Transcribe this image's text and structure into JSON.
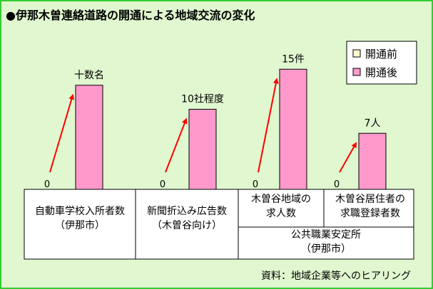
{
  "chart_data": {
    "type": "bar",
    "title": "●伊那木曽連絡道路の開通による地域交流の変化",
    "legend": {
      "placement": "top-right",
      "items": [
        {
          "label": "開通前",
          "color": "#ffffcc"
        },
        {
          "label": "開通後",
          "color": "#ff99cc"
        }
      ]
    },
    "categories": [
      {
        "lines": [
          "自動車学校入所者数",
          "（伊那市）"
        ]
      },
      {
        "lines": [
          "新聞折込み広告数",
          "（木曽谷向け）"
        ]
      },
      {
        "lines": [
          "木曽谷地域の",
          "求人数"
        ]
      },
      {
        "lines": [
          "木曽谷居住者の",
          "求職登録者数"
        ]
      }
    ],
    "group_label": {
      "lines": [
        "公共職業安定所",
        "（伊那市）"
      ],
      "covers": [
        2,
        3
      ]
    },
    "series": [
      {
        "name": "開通前",
        "values": [
          0,
          0,
          0,
          0
        ],
        "labels": [
          "0",
          "0",
          "0",
          "0"
        ],
        "color": "#ffffcc"
      },
      {
        "name": "開通後",
        "values": [
          13,
          10,
          15,
          7
        ],
        "labels": [
          "十数名",
          "10社程度",
          "15件",
          "7人"
        ],
        "color": "#ff99cc"
      }
    ],
    "ylim": [
      0,
      16
    ],
    "grid": false,
    "source": "資料：地域企業等へのヒアリング"
  }
}
